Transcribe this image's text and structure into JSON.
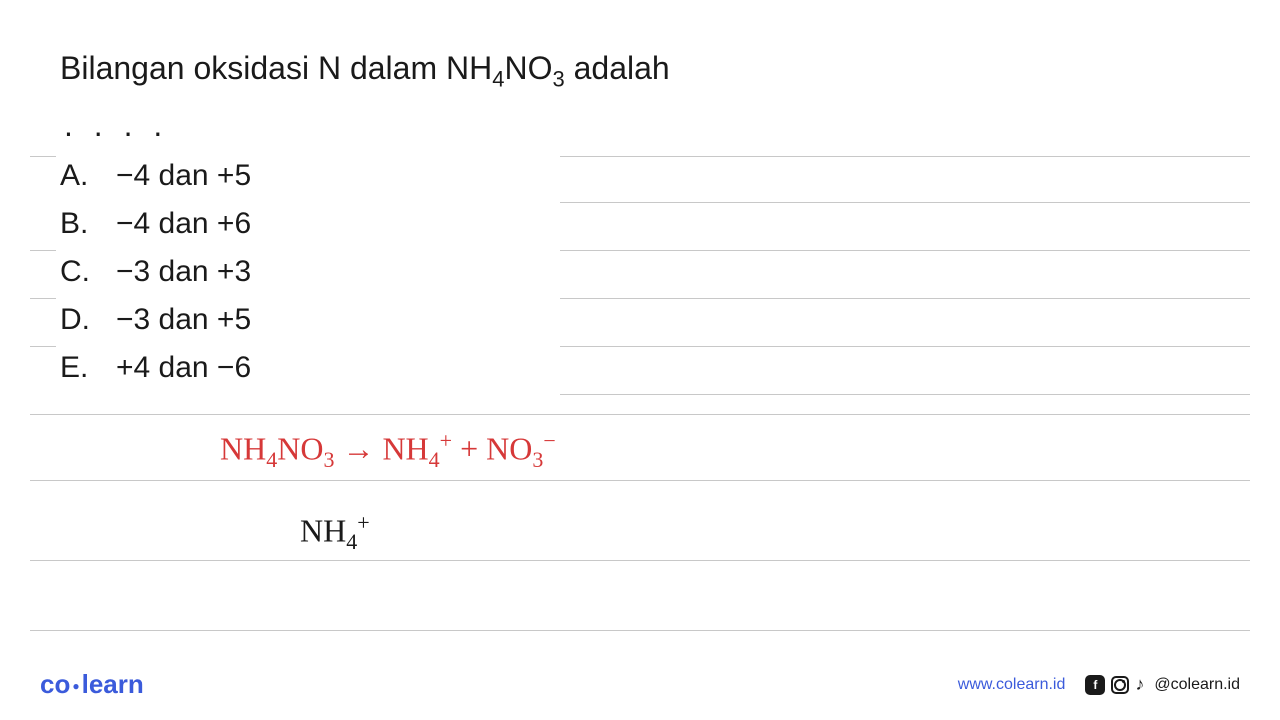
{
  "question": {
    "prefix": "Bilangan oksidasi N dalam NH",
    "sub1": "4",
    "mid": "NO",
    "sub2": "3",
    "suffix": " adalah",
    "dots": ". . . ."
  },
  "options": [
    {
      "letter": "A.",
      "text": "−4 dan +5"
    },
    {
      "letter": "B.",
      "text": "−4 dan +6"
    },
    {
      "letter": "C.",
      "text": "−3 dan +3"
    },
    {
      "letter": "D.",
      "text": "−3 dan +5"
    },
    {
      "letter": "E.",
      "text": "+4 dan −6"
    }
  ],
  "handwriting_red": {
    "p1": "NH",
    "s1": "4",
    "p2": "NO",
    "s2": "3",
    "arrow": " → NH",
    "s3": "4",
    "sup1": "+",
    "plus": " + NO",
    "s4": "3",
    "sup2": "−"
  },
  "handwriting_black": {
    "p1": "NH",
    "s1": "4",
    "sup1": "+"
  },
  "footer": {
    "logo_co": "co",
    "logo_learn": "learn",
    "url": "www.colearn.id",
    "handle": "@colearn.id",
    "fb_letter": "f"
  },
  "ruled_lines": {
    "color": "#c8c8c8",
    "right_only_tops": [
      156,
      202,
      250,
      298,
      346,
      394
    ],
    "full_tops": [
      414,
      480,
      560,
      630
    ],
    "left_tick_tops": [
      156,
      250,
      298,
      346
    ]
  },
  "colors": {
    "text": "#1a1a1a",
    "red_ink": "#d63838",
    "brand_blue": "#3b5bdb",
    "background": "#ffffff"
  }
}
